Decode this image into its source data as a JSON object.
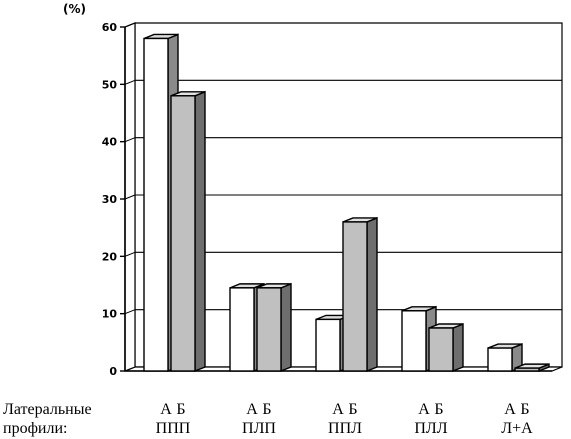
{
  "chart_data": {
    "type": "bar",
    "ylabel": "(%)",
    "ylim": [
      0,
      60
    ],
    "yticks": [
      "0",
      "10",
      "20",
      "30",
      "40",
      "50",
      "60"
    ],
    "row_caption": [
      "Латеральные",
      "профили:"
    ],
    "categories": [
      "ППП",
      "ПЛП",
      "ППЛ",
      "ПЛЛ",
      "Л+А"
    ],
    "series": [
      {
        "name": "А",
        "color": "#ffffff",
        "values": [
          58,
          14.5,
          9,
          10.5,
          4
        ]
      },
      {
        "name": "Б",
        "color": "#c0c0c0",
        "values": [
          48,
          14.5,
          26,
          7.5,
          0.5
        ]
      }
    ],
    "grid": true,
    "legend": "under each category"
  }
}
